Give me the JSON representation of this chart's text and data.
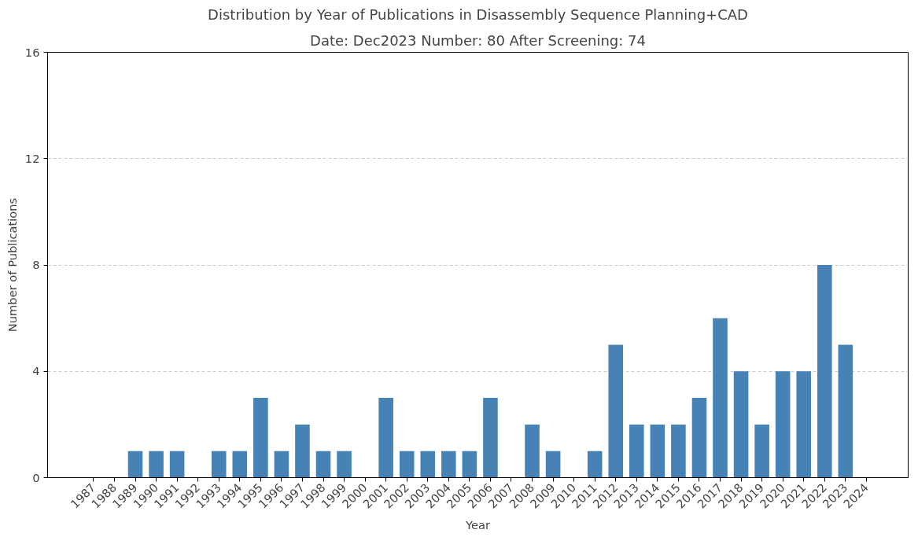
{
  "chart_data": {
    "type": "bar",
    "title": "Distribution by Year of Publications in Disassembly Sequence Planning+CAD",
    "subtitle": "Date: Dec2023 Number: 80 After Screening: 74",
    "xlabel": "Year",
    "ylabel": "Number of Publications",
    "categories": [
      "1987",
      "1988",
      "1989",
      "1990",
      "1991",
      "1992",
      "1993",
      "1994",
      "1995",
      "1996",
      "1997",
      "1998",
      "1999",
      "2000",
      "2001",
      "2002",
      "2003",
      "2004",
      "2005",
      "2006",
      "2007",
      "2008",
      "2009",
      "2010",
      "2011",
      "2012",
      "2013",
      "2014",
      "2015",
      "2016",
      "2017",
      "2018",
      "2019",
      "2020",
      "2021",
      "2022",
      "2023",
      "2024"
    ],
    "values": [
      0,
      0,
      1,
      1,
      1,
      0,
      1,
      1,
      3,
      1,
      2,
      1,
      1,
      0,
      3,
      1,
      1,
      1,
      1,
      3,
      0,
      2,
      1,
      0,
      1,
      5,
      2,
      2,
      2,
      3,
      6,
      4,
      2,
      4,
      4,
      8,
      5,
      0
    ],
    "color": "#4682b4",
    "ylim": [
      0,
      16
    ],
    "yticks": [
      0,
      4,
      8,
      12,
      16
    ],
    "grid": "y"
  }
}
